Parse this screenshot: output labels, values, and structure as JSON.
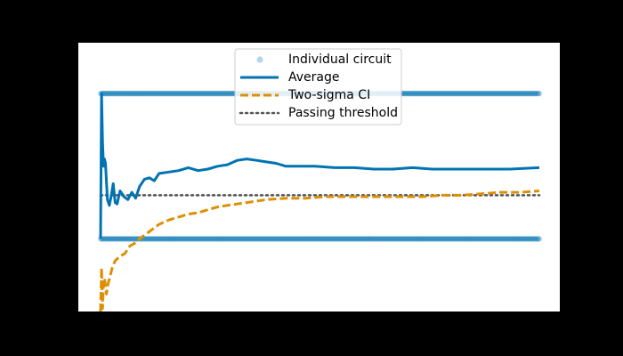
{
  "chart_data": {
    "type": "line",
    "title": "",
    "xlabel": "",
    "ylabel": "",
    "xlim": [
      0,
      450
    ],
    "ylim": [
      -0.5,
      1.35
    ],
    "grid": false,
    "legend_position": "top-center",
    "colors": {
      "figure_background": "#000000",
      "axes_background": "#ffffff",
      "individual": "#0173b2",
      "average": "#0173b2",
      "ci": "#de8f05",
      "threshold": "#555555"
    },
    "legend": [
      {
        "label": "Individual circuit",
        "style": "scatter"
      },
      {
        "label": "Average",
        "style": "solid"
      },
      {
        "label": "Two-sigma CI",
        "style": "dashed"
      },
      {
        "label": "Passing threshold",
        "style": "dotted"
      }
    ],
    "series": [
      {
        "name": "Individual circuit",
        "kind": "scatter",
        "rows": [
          0,
          1
        ],
        "x_range": [
          0,
          450
        ],
        "count_per_row": 450
      },
      {
        "name": "Average",
        "kind": "line",
        "x": [
          0,
          1,
          2,
          3,
          4,
          5,
          7,
          9,
          11,
          13,
          15,
          17,
          20,
          24,
          28,
          32,
          36,
          40,
          45,
          50,
          55,
          60,
          70,
          80,
          90,
          100,
          110,
          120,
          130,
          140,
          150,
          160,
          170,
          180,
          190,
          200,
          220,
          240,
          260,
          280,
          300,
          320,
          340,
          360,
          380,
          400,
          420,
          450
        ],
        "y": [
          0.0,
          1.0,
          0.67,
          0.5,
          0.55,
          0.52,
          0.27,
          0.23,
          0.3,
          0.38,
          0.25,
          0.24,
          0.33,
          0.29,
          0.27,
          0.32,
          0.28,
          0.36,
          0.41,
          0.42,
          0.4,
          0.45,
          0.46,
          0.47,
          0.49,
          0.47,
          0.48,
          0.5,
          0.51,
          0.54,
          0.55,
          0.54,
          0.53,
          0.52,
          0.5,
          0.5,
          0.5,
          0.49,
          0.49,
          0.48,
          0.48,
          0.49,
          0.48,
          0.48,
          0.48,
          0.48,
          0.48,
          0.49
        ]
      },
      {
        "name": "Two-sigma CI",
        "kind": "line",
        "x": [
          0,
          1,
          2,
          3,
          4,
          5,
          6,
          8,
          10,
          12,
          15,
          20,
          25,
          30,
          35,
          40,
          50,
          60,
          70,
          80,
          90,
          100,
          110,
          120,
          130,
          140,
          150,
          170,
          190,
          210,
          230,
          250,
          270,
          290,
          310,
          330,
          350,
          370,
          390,
          410,
          430,
          450
        ],
        "y": [
          -0.5,
          -0.2,
          -0.48,
          -0.3,
          -0.27,
          -0.32,
          -0.38,
          -0.3,
          -0.25,
          -0.2,
          -0.15,
          -0.12,
          -0.1,
          -0.05,
          -0.03,
          0.0,
          0.05,
          0.1,
          0.13,
          0.15,
          0.17,
          0.18,
          0.2,
          0.22,
          0.23,
          0.24,
          0.25,
          0.27,
          0.28,
          0.28,
          0.29,
          0.29,
          0.29,
          0.29,
          0.29,
          0.29,
          0.3,
          0.3,
          0.31,
          0.32,
          0.32,
          0.33
        ]
      },
      {
        "name": "Passing threshold",
        "kind": "hline",
        "y": 0.3,
        "x_range": [
          0,
          450
        ]
      }
    ]
  }
}
